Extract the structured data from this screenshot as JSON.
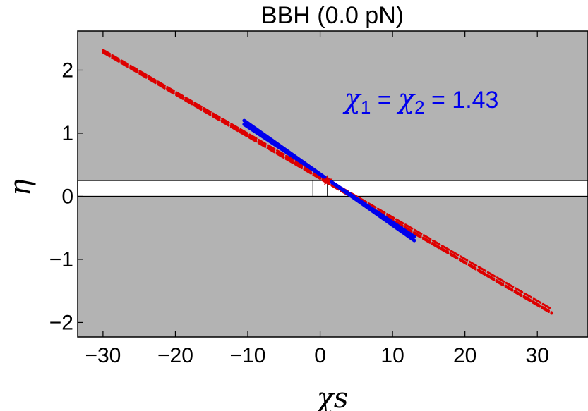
{
  "chart_data": {
    "type": "line",
    "title": "BBH (0.0 pN)",
    "xlabel": "χs",
    "ylabel": "η",
    "xlim": [
      -33.5,
      37
    ],
    "ylim": [
      -2.23,
      2.62
    ],
    "xticks": [
      -30,
      -20,
      -10,
      0,
      10,
      20,
      30
    ],
    "yticks": [
      -2,
      -1,
      0,
      1,
      2
    ],
    "xtick_labels": [
      "−30",
      "−20",
      "−10",
      "0",
      "10",
      "20",
      "30"
    ],
    "ytick_labels": [
      "−2",
      "−1",
      "0",
      "1",
      "2"
    ],
    "grid": false,
    "background_color": "#b3b3b3",
    "physical_band": {
      "y": [
        0,
        0.25
      ],
      "fill": "#ffffff",
      "x_markers": [
        -1,
        1
      ]
    },
    "series": [
      {
        "style": "dashed",
        "color": "#dd0000",
        "x": [
          -30,
          32
        ],
        "y": [
          2.3,
          -1.84
        ]
      },
      {
        "style": "dashed",
        "color": "#dd0000",
        "x": [
          -30,
          32
        ],
        "y": [
          2.32,
          -1.79
        ]
      },
      {
        "style": "dashed",
        "color": "#dd0000",
        "x": [
          -30,
          32
        ],
        "y": [
          2.28,
          -1.86
        ]
      },
      {
        "style": "solid",
        "color": "#0000ee",
        "x": [
          -10.5,
          13
        ],
        "y": [
          1.2,
          -0.7
        ]
      },
      {
        "style": "solid",
        "color": "#0000ee",
        "x": [
          -10.5,
          13
        ],
        "y": [
          1.14,
          -0.64
        ]
      }
    ],
    "marker": {
      "x": 1,
      "y": 0.25,
      "symbol": "star",
      "color": "#dd0000"
    },
    "annotations": [
      {
        "parts": [
          "χ",
          "1",
          " = ",
          "χ",
          "2",
          " = 1.43"
        ],
        "x": 14,
        "y": 1.4,
        "color": "#0000ee"
      }
    ]
  }
}
